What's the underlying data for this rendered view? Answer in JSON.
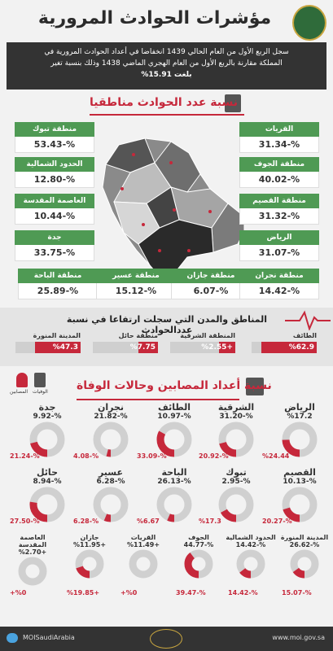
{
  "header": {
    "title": "مؤشرات الحوادث المرورية"
  },
  "intro": {
    "line1": "سجل الربع الأول من العام الحالي 1439 انخفاضا في أعداد الحوادث المرورية في",
    "line2": "المملكة مقارنة بالربع الأول من العام الهجري الماضي 1438 وذلك بنسبة تغير",
    "line3": "بلغت 15.91%"
  },
  "section1": {
    "title": "نسبة عدد الحوادث مناطقيا"
  },
  "regions": [
    {
      "name": "منطقة تبوك",
      "value": "%-53.43"
    },
    {
      "name": "الحدود الشمالية",
      "value": "%-12.80"
    },
    {
      "name": "العاصمة المقدسة",
      "value": "%-10.44"
    },
    {
      "name": "جدة",
      "value": "%-33.75"
    },
    {
      "name": "منطقة الباحة",
      "value": "%-25.89"
    },
    {
      "name": "منطقة عسير",
      "value": "%-15.12"
    },
    {
      "name": "منطقة جازان",
      "value": "%-6.07"
    },
    {
      "name": "منطقة نجران",
      "value": "%-14.42"
    },
    {
      "name": "القريات",
      "value": "%-31.34"
    },
    {
      "name": "منطقة الجوف",
      "value": "%-40.02"
    },
    {
      "name": "منطقة القصيم",
      "value": "%-31.32"
    },
    {
      "name": "الرياض",
      "value": "%-31.07"
    }
  ],
  "section2": {
    "title": "المناطق والمدن التي سجلت ارتفاعا في نسبة عددالحوادث"
  },
  "rises": [
    {
      "name": "الطائف",
      "value": "%62.9",
      "pct": 0.629
    },
    {
      "name": "المنطقة الشرقية",
      "value": "+%2.55",
      "pct": 0.0255
    },
    {
      "name": "منطقة حائل",
      "value": "%7.75",
      "pct": 0.0775
    },
    {
      "name": "المدينة المنورة",
      "value": "%47.3",
      "pct": 0.473
    }
  ],
  "section3": {
    "title": "نسبة أعداد المصابين وحالات الوفاة"
  },
  "legend": {
    "injured": "المصابين",
    "deaths": "الوفيات"
  },
  "donuts": [
    {
      "name": "الرياض",
      "a": "%17.2",
      "b": "%24.44",
      "pct": 0.2444
    },
    {
      "name": "الشرقية",
      "a": "%-31.20",
      "b": "%-20.92",
      "pct": 0.2092
    },
    {
      "name": "الطائف",
      "a": "%-10.97",
      "b": "%-33.09",
      "pct": 0.3309
    },
    {
      "name": "نجران",
      "a": "%-21.82",
      "b": "%-4.08",
      "pct": 0.0408
    },
    {
      "name": "جدة",
      "a": "%-9.92",
      "b": "%-21.24",
      "pct": 0.2124
    },
    {
      "name": "القصيم",
      "a": "%-10.13",
      "b": "%-20.27",
      "pct": 0.2027
    },
    {
      "name": "تبوك",
      "a": "%-2.95",
      "b": "%17.3",
      "pct": 0.173
    },
    {
      "name": "الباحة",
      "a": "%-26.13",
      "b": "%6.67",
      "pct": 0.0667
    },
    {
      "name": "عسير",
      "a": "%-6.28",
      "b": "%-6.28",
      "pct": 0.0628
    },
    {
      "name": "حائل",
      "a": "%-8.94",
      "b": "%-27.50",
      "pct": 0.275
    }
  ],
  "small_donuts": [
    {
      "name": "المدينة المنورة",
      "a": "%-26.62",
      "b": "%-15.07",
      "pct": 0.1507
    },
    {
      "name": "الحدود الشمالية",
      "a": "%-14.42",
      "b": "%-14.42",
      "pct": 0.1442
    },
    {
      "name": "الجوف",
      "a": "%-44.77",
      "b": "%-39.47",
      "pct": 0.3947
    },
    {
      "name": "القريات",
      "a": "+%11.49",
      "b": "%0+",
      "pct": 0.0
    },
    {
      "name": "جازان",
      "a": "+%11.95",
      "b": "+%19.85",
      "pct": 0.1985
    },
    {
      "name": "العاصمة المقدسة",
      "a": "+%2.70",
      "b": "%0+",
      "pct": 0.0
    }
  ],
  "footer": {
    "handle": "MOISaudiArabia",
    "site": "www.moi.gov.sa"
  },
  "colors": {
    "accent": "#c6283b",
    "green": "#4f9a54",
    "dark": "#333333"
  }
}
